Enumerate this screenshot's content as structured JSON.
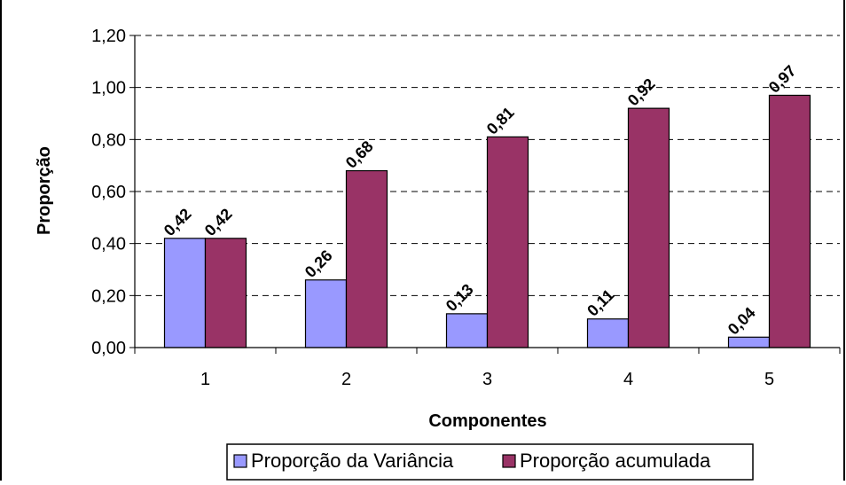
{
  "chart_data": {
    "type": "bar",
    "title": "",
    "xlabel": "Componentes",
    "ylabel": "Proporção",
    "categories": [
      "1",
      "2",
      "3",
      "4",
      "5"
    ],
    "series": [
      {
        "name": "Proporção da Variância",
        "values": [
          0.42,
          0.26,
          0.13,
          0.11,
          0.04
        ],
        "labels": [
          "0,42",
          "0,26",
          "0,13",
          "0,11",
          "0,04"
        ],
        "color": "#9999ff"
      },
      {
        "name": "Proporção acumulada",
        "values": [
          0.42,
          0.68,
          0.81,
          0.92,
          0.97
        ],
        "labels": [
          "0,42",
          "0,68",
          "0,81",
          "0,92",
          "0,97"
        ],
        "color": "#993366"
      }
    ],
    "ylim": [
      0,
      1.2
    ],
    "yticks": [
      0,
      0.2,
      0.4,
      0.6,
      0.8,
      1.0,
      1.2
    ],
    "ytick_labels": [
      "0,00",
      "0,20",
      "0,40",
      "0,60",
      "0,80",
      "1,00",
      "1,20"
    ],
    "grid": "horizontal-dashed",
    "legend_position": "bottom"
  }
}
